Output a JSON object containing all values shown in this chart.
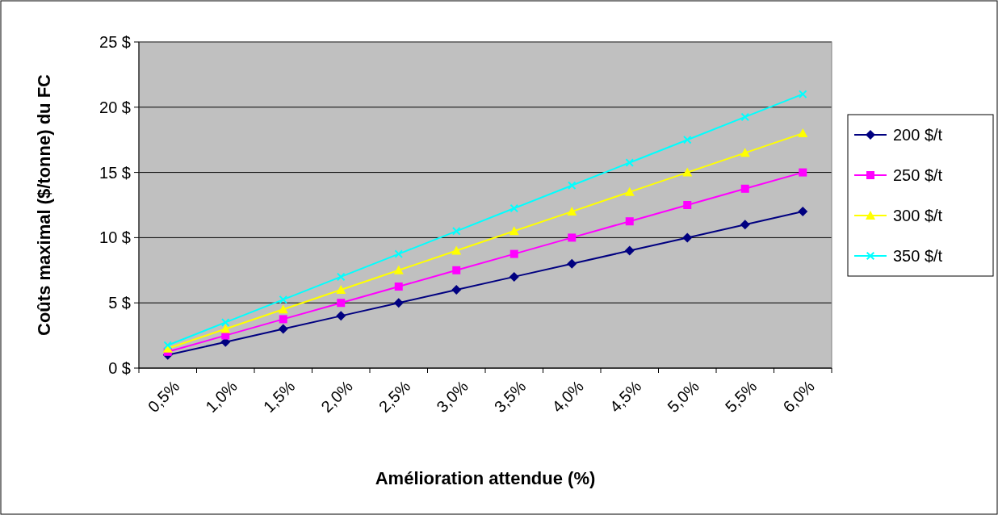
{
  "chart_data": {
    "type": "line",
    "xlabel": "Amélioration attendue (%)",
    "ylabel": "Coûts maximal ($/tonne) du FC",
    "categories": [
      "0,5%",
      "1,0%",
      "1,5%",
      "2,0%",
      "2,5%",
      "3,0%",
      "3,5%",
      "4,0%",
      "4,5%",
      "5,0%",
      "5,5%",
      "6,0%"
    ],
    "series": [
      {
        "name": "200 $/t",
        "color": "#000080",
        "marker": "diamond",
        "values": [
          1,
          2,
          3,
          4,
          5,
          6,
          7,
          8,
          9,
          10,
          11,
          12
        ]
      },
      {
        "name": "250 $/t",
        "color": "#ff00ff",
        "marker": "square",
        "values": [
          1.25,
          2.5,
          3.75,
          5,
          6.25,
          7.5,
          8.75,
          10,
          11.25,
          12.5,
          13.75,
          15
        ]
      },
      {
        "name": "300 $/t",
        "color": "#ffff00",
        "marker": "triangle",
        "values": [
          1.5,
          3,
          4.5,
          6,
          7.5,
          9,
          10.5,
          12,
          13.5,
          15,
          16.5,
          18
        ]
      },
      {
        "name": "350 $/t",
        "color": "#00ffff",
        "marker": "cross",
        "values": [
          1.75,
          3.5,
          5.25,
          7,
          8.75,
          10.5,
          12.25,
          14,
          15.75,
          17.5,
          19.25,
          21
        ]
      }
    ],
    "ylim": [
      0,
      25
    ],
    "yticks": [
      {
        "value": 0,
        "label": "0 $"
      },
      {
        "value": 5,
        "label": "5 $"
      },
      {
        "value": 10,
        "label": "10 $"
      },
      {
        "value": 15,
        "label": "15 $"
      },
      {
        "value": 20,
        "label": "20 $"
      },
      {
        "value": 25,
        "label": "25 $"
      }
    ],
    "grid": "y",
    "legend": "right",
    "line_style": "solid"
  }
}
